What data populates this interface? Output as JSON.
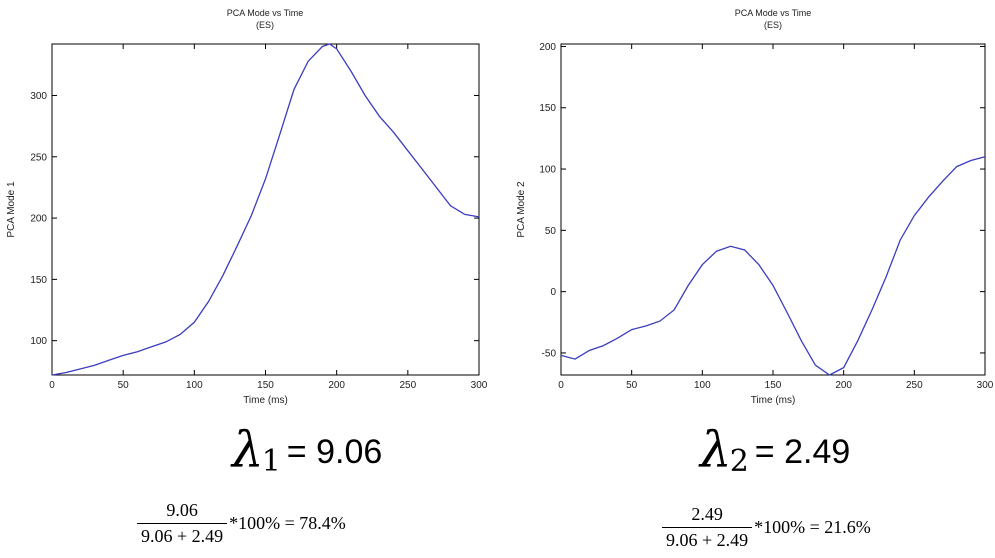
{
  "chart_data": [
    {
      "type": "line",
      "title": "PCA Mode vs Time",
      "subtitle": "(ES)",
      "xlabel": "Time (ms)",
      "ylabel": "PCA Mode 1",
      "xlim": [
        0,
        300
      ],
      "ylim": [
        72,
        342
      ],
      "xticks": [
        0,
        50,
        100,
        150,
        200,
        250,
        300
      ],
      "yticks": [
        100,
        150,
        200,
        250,
        300
      ],
      "grid": false,
      "series": [
        {
          "color": "#3c3cbe",
          "x": [
            0,
            10,
            20,
            30,
            40,
            50,
            60,
            70,
            80,
            90,
            100,
            110,
            120,
            130,
            140,
            150,
            160,
            170,
            180,
            190,
            195,
            200,
            210,
            220,
            230,
            240,
            250,
            260,
            270,
            280,
            290,
            300
          ],
          "y": [
            72,
            74,
            77,
            80,
            84,
            88,
            91,
            95,
            99,
            105,
            115,
            132,
            153,
            177,
            202,
            232,
            268,
            305,
            328,
            340,
            342,
            338,
            320,
            300,
            283,
            270,
            255,
            240,
            225,
            210,
            203,
            201
          ]
        }
      ]
    },
    {
      "type": "line",
      "title": "PCA Mode vs Time",
      "subtitle": "(ES)",
      "xlabel": "Time (ms)",
      "ylabel": "PCA Mode 2",
      "xlim": [
        0,
        300
      ],
      "ylim": [
        -68,
        202
      ],
      "xticks": [
        0,
        50,
        100,
        150,
        200,
        250,
        300
      ],
      "yticks": [
        -50,
        0,
        50,
        100,
        150,
        200
      ],
      "grid": false,
      "series": [
        {
          "color": "#3c3cbe",
          "x": [
            0,
            10,
            20,
            30,
            40,
            50,
            60,
            70,
            80,
            90,
            100,
            110,
            120,
            130,
            140,
            150,
            160,
            170,
            180,
            190,
            200,
            210,
            220,
            230,
            240,
            250,
            260,
            270,
            280,
            290,
            300
          ],
          "y": [
            -52,
            -55,
            -48,
            -44,
            -38,
            -31,
            -28,
            -24,
            -15,
            5,
            22,
            33,
            37,
            34,
            22,
            5,
            -17,
            -40,
            -60,
            -68,
            -62,
            -40,
            -15,
            12,
            42,
            62,
            77,
            90,
            102,
            107,
            110
          ]
        }
      ]
    }
  ],
  "eigen": [
    {
      "symbol": "λ",
      "subscript": "1",
      "equals": "= 9.06",
      "numerator": "9.06",
      "denominator": "9.06 + 2.49",
      "rest": "*100% = 78.4%"
    },
    {
      "symbol": "λ",
      "subscript": "2",
      "equals": "= 2.49",
      "numerator": "2.49",
      "denominator": "9.06 + 2.49",
      "rest": "*100% = 21.6%"
    }
  ]
}
